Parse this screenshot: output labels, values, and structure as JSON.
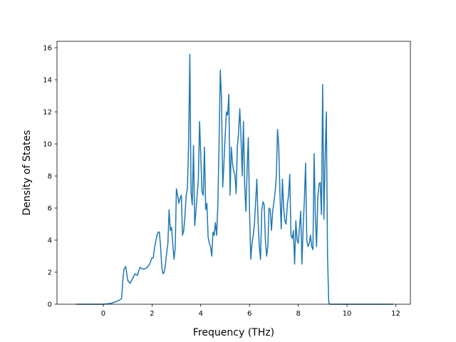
{
  "chart_data": {
    "type": "line",
    "title": "",
    "xlabel": "Frequency (THz)",
    "ylabel": "Density of States",
    "xlim": [
      -1.9,
      12.6
    ],
    "ylim": [
      0,
      16.4
    ],
    "xticks": [
      0,
      2,
      4,
      6,
      8,
      10,
      12
    ],
    "yticks": [
      0,
      2,
      4,
      6,
      8,
      10,
      12,
      14,
      16
    ],
    "grid": false,
    "legend": "none",
    "series": [
      {
        "color": "#1f77b4",
        "x": [
          -1.1,
          -0.5,
          0.0,
          0.3,
          0.5,
          0.65,
          0.75,
          0.8,
          0.85,
          0.92,
          1.0,
          1.1,
          1.2,
          1.3,
          1.4,
          1.5,
          1.6,
          1.7,
          1.8,
          1.9,
          2.0,
          2.05,
          2.1,
          2.15,
          2.2,
          2.25,
          2.3,
          2.35,
          2.4,
          2.45,
          2.5,
          2.55,
          2.6,
          2.65,
          2.7,
          2.75,
          2.8,
          2.85,
          2.9,
          2.95,
          3.0,
          3.05,
          3.1,
          3.15,
          3.2,
          3.25,
          3.3,
          3.35,
          3.4,
          3.45,
          3.5,
          3.55,
          3.6,
          3.65,
          3.7,
          3.75,
          3.8,
          3.85,
          3.9,
          3.95,
          4.0,
          4.05,
          4.1,
          4.15,
          4.2,
          4.25,
          4.3,
          4.35,
          4.4,
          4.45,
          4.5,
          4.55,
          4.6,
          4.65,
          4.7,
          4.75,
          4.8,
          4.85,
          4.9,
          4.95,
          5.0,
          5.05,
          5.1,
          5.15,
          5.2,
          5.25,
          5.3,
          5.35,
          5.4,
          5.45,
          5.5,
          5.55,
          5.6,
          5.65,
          5.7,
          5.75,
          5.8,
          5.85,
          5.9,
          5.95,
          6.0,
          6.05,
          6.1,
          6.15,
          6.2,
          6.25,
          6.3,
          6.35,
          6.4,
          6.45,
          6.5,
          6.55,
          6.6,
          6.65,
          6.7,
          6.75,
          6.8,
          6.85,
          6.9,
          6.95,
          7.0,
          7.05,
          7.1,
          7.15,
          7.2,
          7.25,
          7.3,
          7.35,
          7.4,
          7.45,
          7.5,
          7.55,
          7.6,
          7.65,
          7.7,
          7.75,
          7.8,
          7.85,
          7.9,
          7.95,
          8.0,
          8.05,
          8.1,
          8.15,
          8.2,
          8.25,
          8.3,
          8.35,
          8.4,
          8.45,
          8.5,
          8.55,
          8.6,
          8.65,
          8.7,
          8.75,
          8.8,
          8.85,
          8.9,
          8.95,
          9.0,
          9.05,
          9.1,
          9.15,
          9.2,
          9.25,
          9.3,
          9.35,
          9.4,
          9.45,
          9.5,
          9.55,
          9.6,
          9.65,
          9.7,
          9.75,
          9.8,
          9.85,
          9.9,
          9.95,
          10.0,
          10.05,
          10.1,
          10.15,
          10.2,
          10.25,
          10.3,
          10.35,
          10.4,
          10.45,
          10.5,
          10.55,
          10.6,
          10.65,
          10.7,
          10.75,
          10.8,
          10.85,
          10.9,
          11.0,
          11.5,
          11.9
        ],
        "y": [
          0.0,
          0.0,
          0.0,
          0.05,
          0.15,
          0.25,
          0.35,
          1.5,
          2.2,
          2.35,
          1.5,
          1.3,
          1.6,
          1.9,
          1.8,
          2.3,
          2.2,
          2.2,
          2.3,
          2.5,
          2.9,
          2.9,
          3.5,
          3.9,
          4.3,
          4.5,
          4.5,
          3.6,
          2.3,
          1.9,
          2.0,
          2.5,
          3.2,
          3.8,
          5.9,
          4.6,
          4.8,
          3.8,
          2.8,
          3.5,
          7.2,
          6.8,
          6.3,
          6.6,
          6.8,
          4.3,
          4.6,
          5.5,
          6.8,
          7.2,
          10.0,
          15.6,
          7.0,
          6.2,
          9.9,
          4.9,
          5.8,
          6.8,
          7.8,
          11.4,
          9.2,
          7.0,
          6.8,
          9.8,
          5.9,
          6.3,
          4.2,
          3.8,
          3.6,
          3.0,
          4.5,
          4.3,
          5.1,
          4.3,
          6.2,
          10.0,
          14.6,
          12.8,
          7.3,
          8.8,
          10.5,
          12.0,
          11.8,
          13.1,
          6.8,
          9.8,
          8.8,
          8.3,
          8.1,
          6.9,
          9.8,
          10.7,
          12.2,
          10.4,
          8.0,
          11.4,
          7.4,
          5.8,
          8.4,
          10.4,
          5.8,
          2.8,
          3.8,
          4.3,
          5.0,
          6.4,
          7.8,
          5.2,
          3.6,
          2.8,
          5.8,
          6.4,
          6.2,
          4.0,
          3.0,
          3.6,
          6.0,
          5.9,
          4.6,
          5.8,
          6.4,
          7.0,
          8.0,
          10.9,
          9.8,
          6.8,
          4.7,
          7.8,
          6.0,
          5.2,
          5.0,
          6.2,
          6.8,
          8.1,
          4.3,
          4.1,
          4.6,
          2.5,
          5.2,
          4.0,
          3.8,
          4.8,
          5.8,
          2.5,
          4.8,
          6.5,
          8.8,
          4.0,
          3.6,
          3.8,
          4.3,
          3.6,
          3.4,
          9.4,
          5.5,
          3.6,
          6.6,
          7.5,
          7.6,
          5.6,
          13.7,
          5.3,
          9.0,
          12.0,
          3.0,
          0.1,
          0.0,
          0.0,
          0.0,
          0.0,
          0.0,
          0.0,
          0.0,
          0.0,
          0.0,
          0.0,
          0.0,
          0.0,
          0.0,
          0.0,
          0.0,
          0.0,
          0.0,
          0.0,
          0.0,
          0.0,
          0.0,
          0.0,
          0.0,
          0.0,
          0.0,
          0.0,
          0.0,
          0.0,
          0.0,
          0.0,
          0.0,
          0.0,
          0.0,
          0.0,
          0.0,
          0.0
        ]
      }
    ]
  }
}
